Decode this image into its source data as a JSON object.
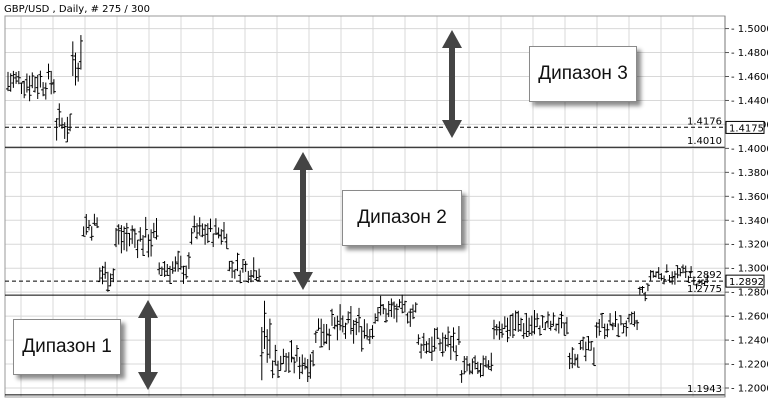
{
  "chart_data": {
    "type": "ohlc",
    "title": "GBP/USD , Daily, # 275 / 300",
    "ylim": [
      1.1925,
      1.5105
    ],
    "y_ticks": [
      1.5,
      1.48,
      1.46,
      1.44,
      1.42,
      1.4,
      1.38,
      1.36,
      1.34,
      1.32,
      1.3,
      1.28,
      1.26,
      1.24,
      1.22,
      1.2
    ],
    "grid": true,
    "price_levels": [
      {
        "value": 1.4176,
        "label": "1.4176",
        "style": "dashed"
      },
      {
        "value": 1.401,
        "label": "1.4010",
        "style": "solid"
      },
      {
        "value": 1.2892,
        "label": "1.2892",
        "style": "dashed",
        "boxed": true
      },
      {
        "value": 1.2775,
        "label": "1.2775",
        "style": "solid"
      },
      {
        "value": 1.1943,
        "label": "1.1943",
        "style": "solid"
      }
    ],
    "current_price_box": "1.4175",
    "annotations": [
      {
        "label": "Дипазон 3",
        "range": [
          1.401,
          1.5
        ]
      },
      {
        "label": "Дипазон 2",
        "range": [
          1.2775,
          1.38
        ]
      },
      {
        "label": "Дипазон 1",
        "range": [
          1.2,
          1.278
        ]
      }
    ],
    "segments": [
      {
        "count": 18,
        "range": [
          1.438,
          1.474
        ]
      },
      {
        "count": 6,
        "range": [
          1.402,
          1.438
        ]
      },
      {
        "count": 4,
        "range": [
          1.45,
          1.502
        ]
      },
      {
        "count": 6,
        "range": [
          1.32,
          1.352
        ]
      },
      {
        "count": 6,
        "range": [
          1.28,
          1.31
        ]
      },
      {
        "count": 16,
        "range": [
          1.305,
          1.345
        ]
      },
      {
        "count": 12,
        "range": [
          1.285,
          1.315
        ]
      },
      {
        "count": 14,
        "range": [
          1.315,
          1.345
        ]
      },
      {
        "count": 12,
        "range": [
          1.285,
          1.315
        ]
      },
      {
        "count": 4,
        "range": [
          1.195,
          1.278
        ]
      },
      {
        "count": 16,
        "range": [
          1.205,
          1.24
        ]
      },
      {
        "count": 22,
        "range": [
          1.23,
          1.27
        ]
      },
      {
        "count": 16,
        "range": [
          1.25,
          1.278
        ]
      },
      {
        "count": 16,
        "range": [
          1.22,
          1.255
        ]
      },
      {
        "count": 12,
        "range": [
          1.2,
          1.23
        ]
      },
      {
        "count": 16,
        "range": [
          1.235,
          1.27
        ]
      },
      {
        "count": 12,
        "range": [
          1.24,
          1.265
        ]
      },
      {
        "count": 10,
        "range": [
          1.215,
          1.245
        ]
      },
      {
        "count": 16,
        "range": [
          1.24,
          1.265
        ]
      },
      {
        "count": 4,
        "range": [
          1.27,
          1.29
        ]
      },
      {
        "count": 16,
        "range": [
          1.285,
          1.305
        ]
      },
      {
        "count": 6,
        "range": [
          1.28,
          1.295
        ]
      }
    ]
  }
}
